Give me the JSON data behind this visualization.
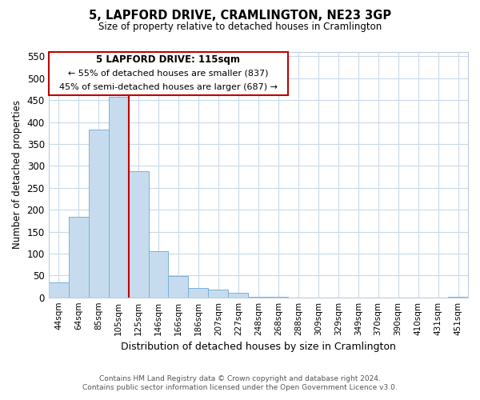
{
  "title": "5, LAPFORD DRIVE, CRAMLINGTON, NE23 3GP",
  "subtitle": "Size of property relative to detached houses in Cramlington",
  "xlabel": "Distribution of detached houses by size in Cramlington",
  "ylabel": "Number of detached properties",
  "footer_lines": [
    "Contains HM Land Registry data © Crown copyright and database right 2024.",
    "Contains public sector information licensed under the Open Government Licence v3.0."
  ],
  "bin_labels": [
    "44sqm",
    "64sqm",
    "85sqm",
    "105sqm",
    "125sqm",
    "146sqm",
    "166sqm",
    "186sqm",
    "207sqm",
    "227sqm",
    "248sqm",
    "268sqm",
    "288sqm",
    "309sqm",
    "329sqm",
    "349sqm",
    "370sqm",
    "390sqm",
    "410sqm",
    "431sqm",
    "451sqm"
  ],
  "bar_heights": [
    35,
    183,
    383,
    457,
    288,
    105,
    48,
    22,
    18,
    10,
    1,
    1,
    0,
    0,
    0,
    0,
    0,
    0,
    0,
    0,
    1
  ],
  "bar_color": "#c6dcee",
  "bar_edge_color": "#7ab0d4",
  "ylim": [
    0,
    560
  ],
  "yticks": [
    0,
    50,
    100,
    150,
    200,
    250,
    300,
    350,
    400,
    450,
    500,
    550
  ],
  "property_line_color": "#c00000",
  "annotation_title": "5 LAPFORD DRIVE: 115sqm",
  "annotation_line1": "← 55% of detached houses are smaller (837)",
  "annotation_line2": "45% of semi-detached houses are larger (687) →",
  "background_color": "#ffffff",
  "grid_color": "#c8d8e8"
}
